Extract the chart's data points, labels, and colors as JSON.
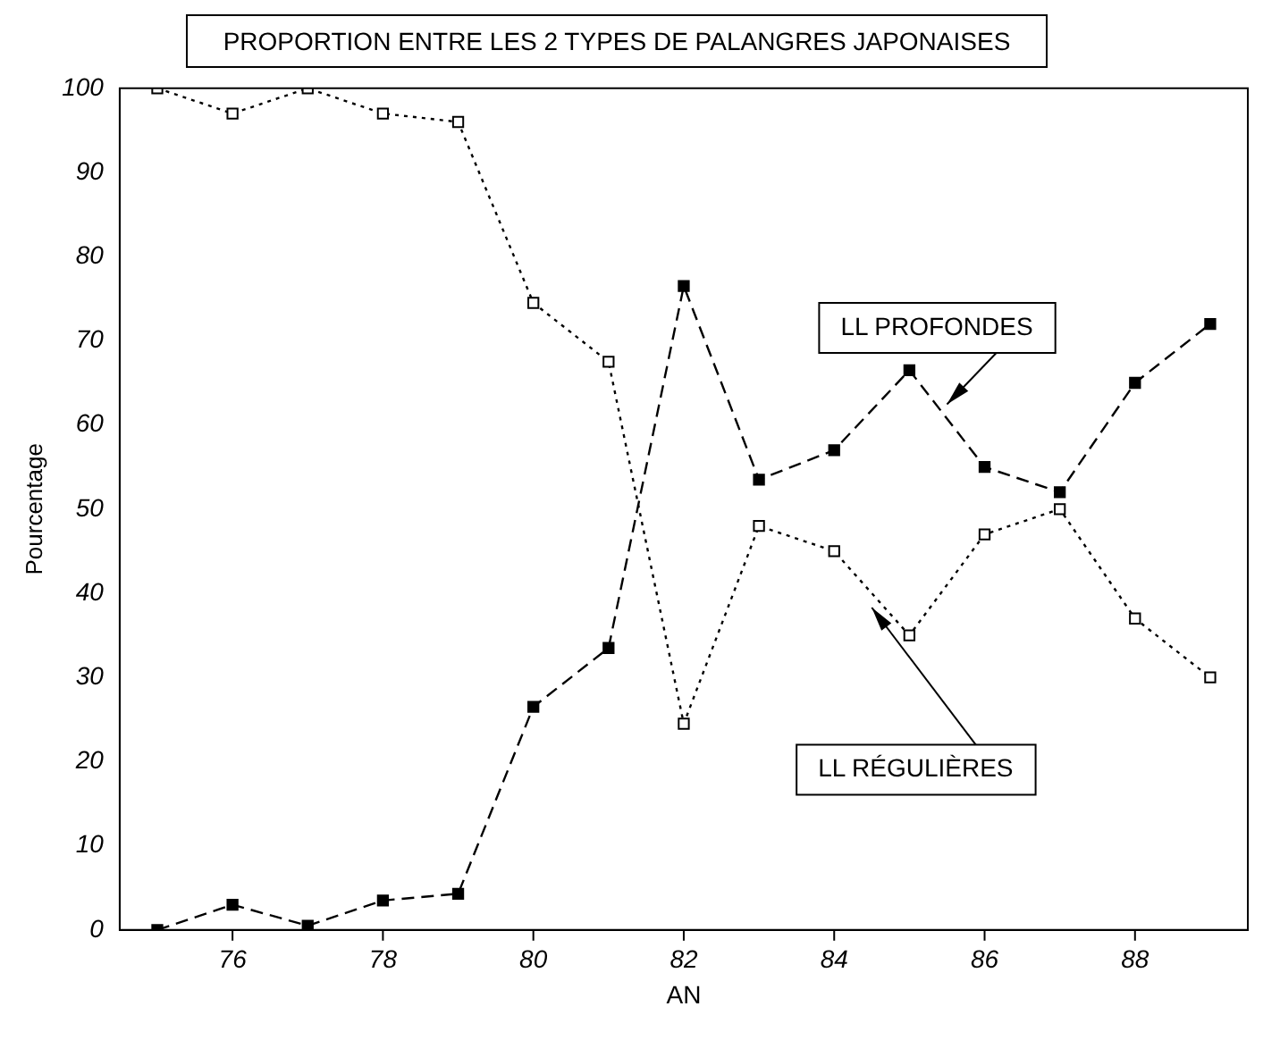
{
  "chart_data": {
    "type": "line",
    "title": "PROPORTION ENTRE LES 2 TYPES DE PALANGRES JAPONAISES",
    "xlabel": "AN",
    "ylabel": "Pourcentage",
    "x": [
      75,
      76,
      77,
      78,
      79,
      80,
      81,
      82,
      83,
      84,
      85,
      86,
      87,
      88,
      89
    ],
    "series": [
      {
        "name": "LL PROFONDES",
        "color": "#000000",
        "line_style": "dashed",
        "values": [
          0,
          3,
          0.5,
          3.5,
          4.3,
          26.5,
          33.5,
          76.5,
          53.5,
          57,
          66.5,
          55,
          52,
          65,
          72
        ]
      },
      {
        "name": "LL RÉGULIÈRES",
        "color": "#000000",
        "line_style": "dotted",
        "values": [
          100,
          97,
          100,
          97,
          96,
          74.5,
          67.5,
          24.5,
          48,
          45,
          35,
          47,
          50,
          37,
          30
        ]
      }
    ],
    "marker": "square",
    "xlim": [
      74.5,
      89.5
    ],
    "xticks": [
      76,
      78,
      80,
      82,
      84,
      86,
      88
    ],
    "ylim": [
      0,
      100
    ],
    "yticks": [
      0,
      10,
      20,
      30,
      40,
      50,
      60,
      70,
      80,
      90,
      100
    ],
    "grid": false,
    "legend": false
  }
}
